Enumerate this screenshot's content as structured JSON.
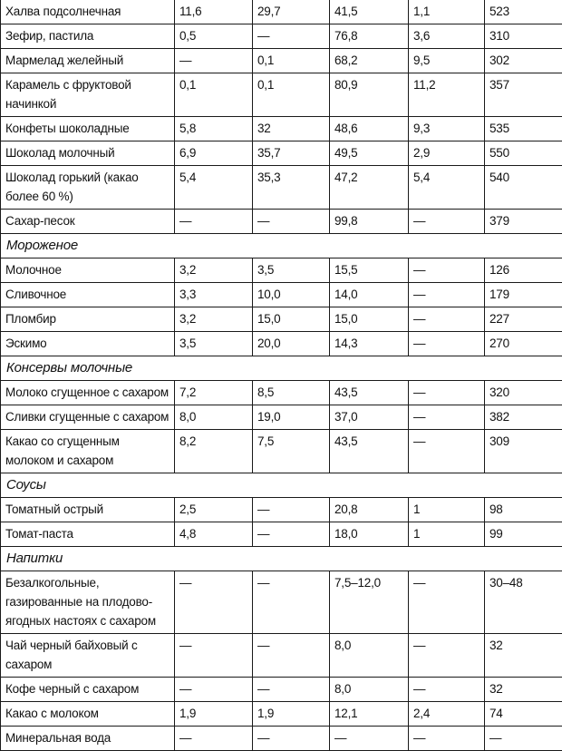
{
  "rows": [
    {
      "type": "data",
      "cells": [
        "Халва подсолнечная",
        "11,6",
        "29,7",
        "41,5",
        "1,1",
        "523"
      ]
    },
    {
      "type": "data",
      "cells": [
        "Зефир, пастила",
        "0,5",
        "—",
        "76,8",
        "3,6",
        "310"
      ]
    },
    {
      "type": "data",
      "cells": [
        "Мармелад желейный",
        "—",
        "0,1",
        "68,2",
        "9,5",
        "302"
      ]
    },
    {
      "type": "data",
      "cells": [
        "Карамель с фруктовой начинкой",
        "0,1",
        "0,1",
        "80,9",
        "11,2",
        "357"
      ]
    },
    {
      "type": "data",
      "cells": [
        "Конфеты шоколадные",
        "5,8",
        "32",
        "48,6",
        "9,3",
        "535"
      ]
    },
    {
      "type": "data",
      "cells": [
        "Шоколад молочный",
        "6,9",
        "35,7",
        "49,5",
        "2,9",
        "550"
      ]
    },
    {
      "type": "data",
      "cells": [
        "Шоколад горький (какао более 60 %)",
        "5,4",
        "35,3",
        "47,2",
        "5,4",
        "540"
      ]
    },
    {
      "type": "data",
      "cells": [
        "Сахар-песок",
        "—",
        "—",
        "99,8",
        "—",
        "379"
      ]
    },
    {
      "type": "section",
      "label": "Мороженое"
    },
    {
      "type": "data",
      "cells": [
        "Молочное",
        "3,2",
        "3,5",
        "15,5",
        "—",
        "126"
      ]
    },
    {
      "type": "data",
      "cells": [
        "Сливочное",
        "3,3",
        "10,0",
        "14,0",
        "—",
        "179"
      ]
    },
    {
      "type": "data",
      "cells": [
        "Пломбир",
        "3,2",
        "15,0",
        "15,0",
        "—",
        "227"
      ]
    },
    {
      "type": "data",
      "cells": [
        "Эскимо",
        "3,5",
        "20,0",
        "14,3",
        "—",
        "270"
      ]
    },
    {
      "type": "section",
      "label": "Консервы молочные"
    },
    {
      "type": "data",
      "cells": [
        "Молоко сгущенное с сахаром",
        "7,2",
        "8,5",
        "43,5",
        "—",
        "320"
      ]
    },
    {
      "type": "data",
      "cells": [
        "Сливки сгущенные с сахаром",
        "8,0",
        "19,0",
        "37,0",
        "—",
        "382"
      ]
    },
    {
      "type": "data",
      "cells": [
        "Какао со сгущенным молоком и сахаром",
        "8,2",
        "7,5",
        "43,5",
        "—",
        "309"
      ]
    },
    {
      "type": "section",
      "label": "Соусы"
    },
    {
      "type": "data",
      "cells": [
        "Томатный острый",
        "2,5",
        "—",
        "20,8",
        "1",
        "98"
      ]
    },
    {
      "type": "data",
      "cells": [
        "Томат-паста",
        "4,8",
        "—",
        "18,0",
        "1",
        "99"
      ]
    },
    {
      "type": "section",
      "label": "Напитки"
    },
    {
      "type": "data",
      "cells": [
        "Безалкогольные, газированные на плодово-ягодных настоях с сахаром",
        "—",
        "—",
        "7,5–12,0",
        "—",
        "30–48"
      ]
    },
    {
      "type": "data",
      "cells": [
        "Чай черный байховый с сахаром",
        "—",
        "—",
        "8,0",
        "—",
        "32"
      ]
    },
    {
      "type": "data",
      "cells": [
        "Кофе черный с сахаром",
        "—",
        "—",
        "8,0",
        "—",
        "32"
      ]
    },
    {
      "type": "data",
      "cells": [
        "Какао с молоком",
        "1,9",
        "1,9",
        "12,1",
        "2,4",
        "74"
      ]
    },
    {
      "type": "data",
      "cells": [
        "Минеральная вода",
        "—",
        "—",
        "—",
        "—",
        "—"
      ]
    }
  ]
}
